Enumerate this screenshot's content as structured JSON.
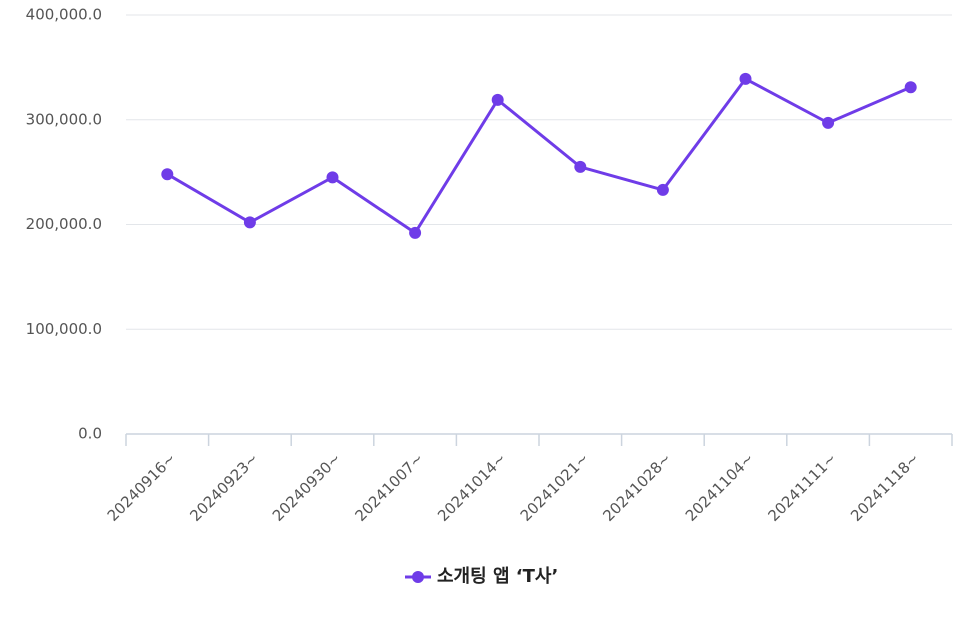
{
  "chart_data": {
    "type": "line",
    "categories": [
      "20240916~",
      "20240923~",
      "20240930~",
      "20241007~",
      "20241014~",
      "20241021~",
      "20241028~",
      "20241104~",
      "20241111~",
      "20241118~"
    ],
    "series": [
      {
        "name": "소개팅 앱 ‘T사’",
        "color": "#6f3ce8",
        "values": [
          248000,
          202000,
          245000,
          192000,
          319000,
          255000,
          233000,
          339000,
          297000,
          331000
        ]
      }
    ],
    "ylim": [
      0,
      400000
    ],
    "yticks": [
      {
        "value": 0,
        "label": "0.0"
      },
      {
        "value": 100000,
        "label": "100,000.0"
      },
      {
        "value": 200000,
        "label": "200,000.0"
      },
      {
        "value": 300000,
        "label": "300,000.0"
      },
      {
        "value": 400000,
        "label": "400,000.0"
      }
    ],
    "grid": true
  }
}
